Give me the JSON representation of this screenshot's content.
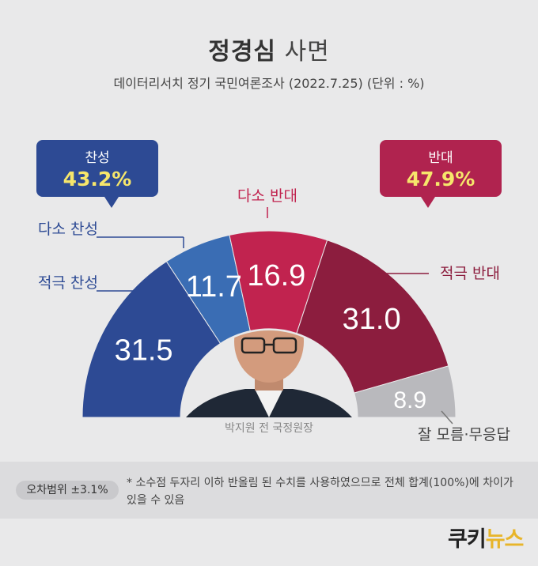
{
  "header": {
    "title_bold": "정경심",
    "title_rest": "사면",
    "subtitle": "데이터리서치 정기 국민여론조사 (2022.7.25)  (단위 : %)"
  },
  "summary": {
    "yes": {
      "label": "찬성",
      "value": "43.2%"
    },
    "no": {
      "label": "반대",
      "value": "47.9%"
    }
  },
  "chart_data": {
    "type": "pie",
    "title": "정경심 사면",
    "unit": "%",
    "categories": [
      "적극 찬성",
      "다소 찬성",
      "다소 반대",
      "적극 반대",
      "잘 모름·무응답"
    ],
    "values": [
      31.5,
      11.7,
      16.9,
      31.0,
      8.9
    ],
    "colors": [
      "#2d4a94",
      "#3a6db4",
      "#c1234f",
      "#8c1d3e",
      "#b9b9bd"
    ],
    "value_labels": [
      "31.5",
      "11.7",
      "16.9",
      "31.0",
      "8.9"
    ]
  },
  "photo_caption": "박지원 전 국정원장",
  "footer": {
    "margin_of_error": "오차범위  ±3.1%",
    "note": "*  소수점 두자리 이하 반올림 된 수치를 사용하였으므로 전체 합계(100%)에 차이가 있을 수 있음",
    "logo_main": "쿠키",
    "logo_accent": "뉴스"
  }
}
